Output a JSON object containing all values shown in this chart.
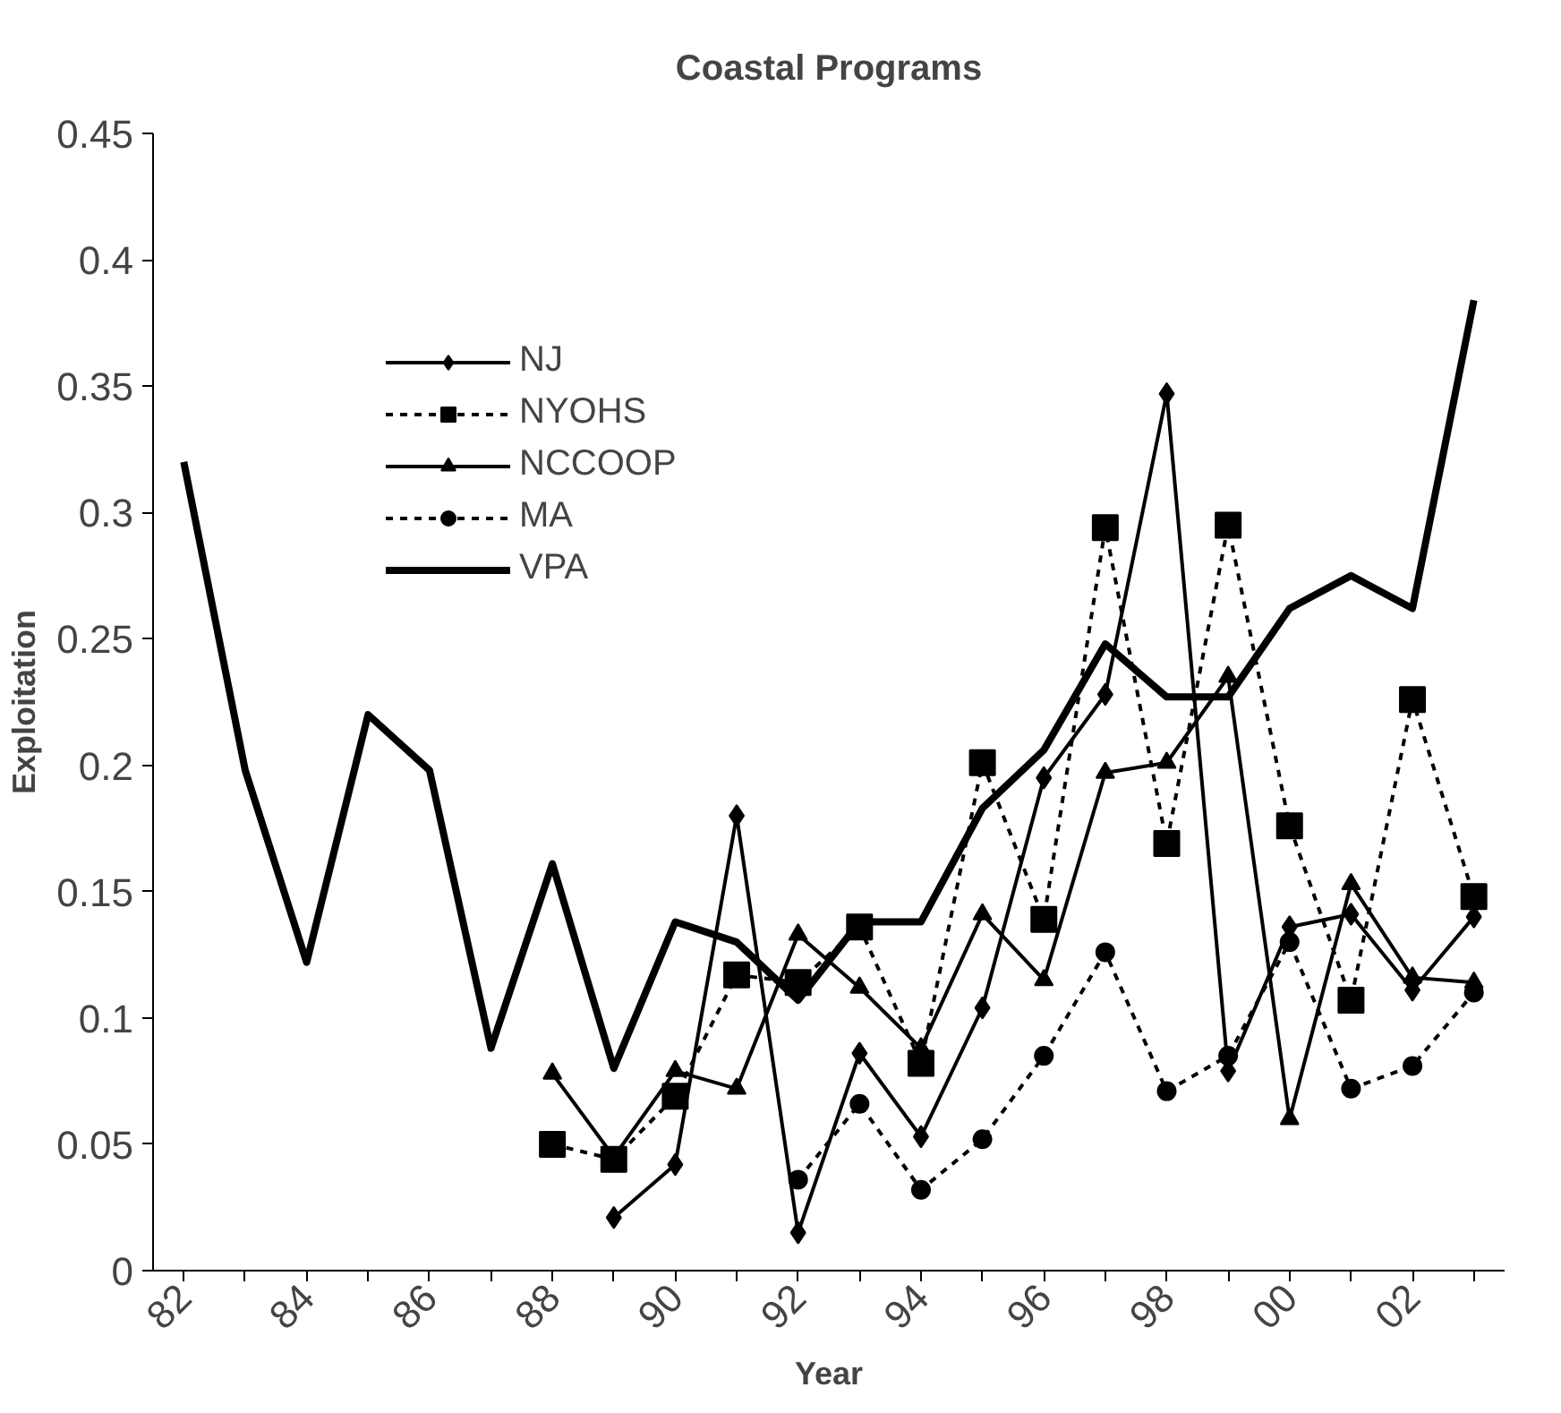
{
  "chart_data": {
    "type": "line",
    "title": "Coastal Programs",
    "xlabel": "Year",
    "ylabel": "Exploitation",
    "categories": [
      "82",
      null,
      "84",
      null,
      "86",
      null,
      "88",
      null,
      "90",
      null,
      "92",
      null,
      "94",
      null,
      "96",
      null,
      "98",
      null,
      "00",
      null,
      "02",
      null
    ],
    "series": [
      {
        "name": "NJ",
        "color": "#000000",
        "marker": "diamond",
        "line_style": "solid",
        "values": [
          null,
          null,
          null,
          null,
          null,
          null,
          null,
          0.021,
          0.042,
          0.18,
          0.015,
          0.086,
          0.053,
          0.104,
          0.195,
          0.228,
          0.347,
          0.079,
          0.136,
          0.141,
          0.111,
          0.14
        ]
      },
      {
        "name": "NYOHS",
        "color": "#000000",
        "marker": "square",
        "line_style": "dashed",
        "values": [
          null,
          null,
          null,
          null,
          null,
          null,
          0.05,
          0.044,
          0.069,
          0.117,
          0.114,
          0.136,
          0.082,
          0.201,
          0.139,
          0.294,
          0.169,
          0.295,
          0.176,
          0.107,
          0.226,
          0.148
        ]
      },
      {
        "name": "NCCOOP",
        "color": "#000000",
        "marker": "triangle",
        "line_style": "solid",
        "values": [
          null,
          null,
          null,
          null,
          null,
          null,
          0.078,
          0.045,
          0.079,
          0.072,
          0.133,
          0.112,
          0.088,
          0.141,
          0.115,
          0.197,
          0.201,
          0.235,
          0.06,
          0.153,
          0.116,
          0.114
        ]
      },
      {
        "name": "MA",
        "color": "#000000",
        "marker": "circle",
        "line_style": "dashed",
        "values": [
          null,
          null,
          null,
          null,
          null,
          null,
          null,
          null,
          null,
          null,
          0.036,
          0.066,
          0.032,
          0.052,
          0.085,
          0.126,
          0.071,
          0.085,
          0.13,
          0.072,
          0.081,
          0.11
        ]
      },
      {
        "name": "VPA",
        "color": "#000000",
        "marker": "none",
        "line_style": "solid",
        "values": [
          0.32,
          0.198,
          0.122,
          0.22,
          0.198,
          0.088,
          0.161,
          0.08,
          0.138,
          0.13,
          0.107,
          0.138,
          0.138,
          0.183,
          0.206,
          0.248,
          0.227,
          0.227,
          0.262,
          0.275,
          0.262,
          0.384
        ]
      }
    ],
    "ylim": [
      0,
      0.45
    ],
    "yticks": [
      0,
      0.05,
      0.1,
      0.15,
      0.2,
      0.25,
      0.3,
      0.35,
      0.4,
      0.45
    ],
    "grid": false,
    "legend": "top left"
  }
}
